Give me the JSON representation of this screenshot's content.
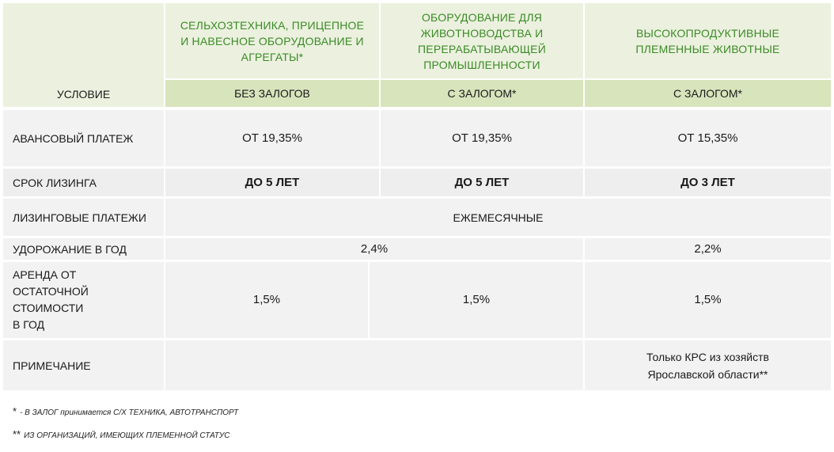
{
  "header": {
    "col1": "СЕЛЬХОЗТЕХНИКА, ПРИЦЕПНОЕ И НАВЕСНОЕ ОБОРУДОВАНИЕ И АГРЕГАТЫ*",
    "col2": "ОБОРУДОВАНИЕ ДЛЯ ЖИВОТНОВОДСТВА И ПЕРЕРАБАТЫВАЮЩЕЙ ПРОМЫШЛЕННОСТИ",
    "col3": "ВЫСОКОПРОДУКТИВНЫЕ ПЛЕМЕННЫЕ ЖИВОТНЫЕ",
    "condition_label": "УСЛОВИЕ",
    "sub1": "БЕЗ ЗАЛОГОВ",
    "sub2": "С ЗАЛОГОМ*",
    "sub3": "С ЗАЛОГОМ*"
  },
  "rows": {
    "advance": {
      "label": "АВАНСОВЫЙ ПЛАТЕЖ",
      "v1": "ОТ 19,35%",
      "v2": "ОТ 19,35%",
      "v3": "ОТ 15,35%"
    },
    "term": {
      "label": "СРОК ЛИЗИНГА",
      "v1": "ДО 5 ЛЕТ",
      "v2": "ДО 5 ЛЕТ",
      "v3": "ДО 3 ЛЕТ"
    },
    "payments": {
      "label": "ЛИЗИНГОВЫЕ ПЛАТЕЖИ",
      "value": "ЕЖЕМЕСЯЧНЫЕ"
    },
    "appreciation": {
      "label": "УДОРОЖАНИЕ В ГОД",
      "v12": "2,4%",
      "v3": "2,2%"
    },
    "rent": {
      "label_line1": "АРЕНДА ОТ",
      "label_line2": "ОСТАТОЧНОЙ",
      "label_line3": "СТОИМОСТИ",
      "label_line4": "В ГОД",
      "v1": "1,5%",
      "v2": "1,5%",
      "v3": "1,5%"
    },
    "note": {
      "label": "ПРИМЕЧАНИЕ",
      "v3_line1": "Только КРС из хозяйств",
      "v3_line2": "Ярославской области**"
    }
  },
  "footnotes": {
    "f1_mark": "*",
    "f1_text": "- В ЗАЛОГ принимается С/Х ТЕХНИКА, АВТОТРАНСПОРТ",
    "f2_mark": "**",
    "f2_text": "ИЗ ОРГАНИЗАЦИЙ, ИМЕЮЩИХ ПЛЕМЕННОЙ СТАТУС"
  }
}
